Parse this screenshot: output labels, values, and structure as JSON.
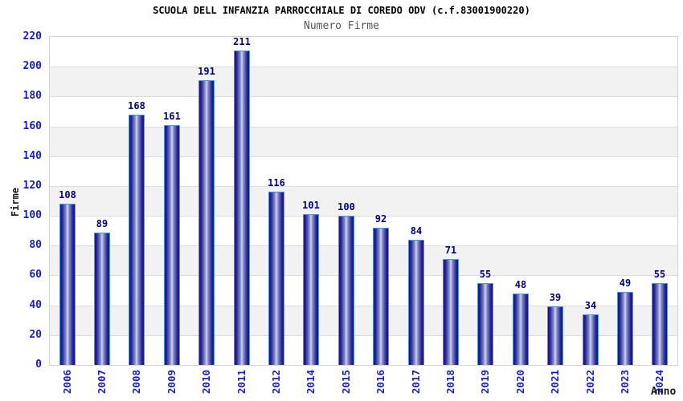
{
  "chart_data": {
    "type": "bar",
    "title": "SCUOLA DELL INFANZIA PARROCCHIALE DI COREDO ODV (c.f.83001900220)",
    "subtitle": "Numero Firme",
    "xlabel": "Anno",
    "ylabel": "Firme",
    "categories": [
      "2006",
      "2007",
      "2008",
      "2009",
      "2010",
      "2011",
      "2012",
      "2014",
      "2015",
      "2016",
      "2017",
      "2018",
      "2019",
      "2020",
      "2021",
      "2022",
      "2023",
      "2024"
    ],
    "values": [
      108,
      89,
      168,
      161,
      191,
      211,
      116,
      101,
      100,
      92,
      84,
      71,
      55,
      48,
      39,
      34,
      49,
      55
    ],
    "ylim": [
      0,
      220
    ],
    "ytick_step": 20,
    "grid": true,
    "legend": "none",
    "colors": {
      "tick_label": "#1a1acc",
      "value_label": "#00007d",
      "title": "#000000",
      "subtitle": "#555555",
      "band_gray": "#f2f2f2",
      "gridline": "#dcdcdc",
      "plot_border": "#d4d4d4",
      "bar_border": "#4d94e4",
      "bar_edge": "#15157c",
      "bar_dark": "#222290",
      "bar_mid": "#8187c8",
      "bar_light": "#ced2f2"
    }
  }
}
